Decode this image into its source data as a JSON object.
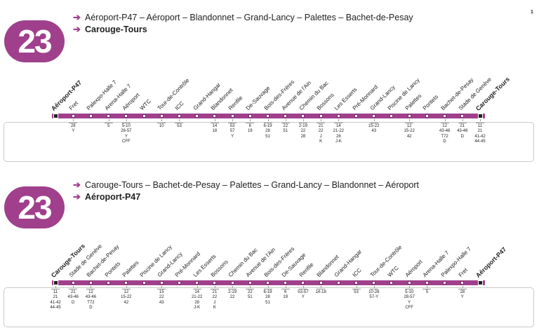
{
  "page_number": "1",
  "colors": {
    "line": "#a0408c"
  },
  "directions": [
    {
      "line_number": "23",
      "route": "Aéroport-P47 – Aéroport – Blandonnet – Grand-Lancy – Palettes – Bachet-de-Pesay",
      "destination": "Carouge-Tours",
      "stops": [
        {
          "name": "Aéroport-P47",
          "terminus": true,
          "corr": ""
        },
        {
          "name": "Fret",
          "corr": "28\nY"
        },
        {
          "name": "Palexpo-Halle 7",
          "corr": ""
        },
        {
          "name": "Arena-Halle 7",
          "corr": "5"
        },
        {
          "name": "Aéroport",
          "corr": "5-10\n28-57\nY\nCFF"
        },
        {
          "name": "WTC",
          "corr": ""
        },
        {
          "name": "Tour-de-Contrôle",
          "corr": "10"
        },
        {
          "name": "ICC",
          "corr": "53"
        },
        {
          "name": "Grand-Hangar",
          "corr": ""
        },
        {
          "name": "Blandonnet",
          "corr": "14\n18"
        },
        {
          "name": "Renfile",
          "corr": "53\n57\nY"
        },
        {
          "name": "De-Sauvage",
          "corr": "6\n19"
        },
        {
          "name": "Bois-des-Frères",
          "corr": "6-19\n28\n51"
        },
        {
          "name": "Avenue de l'Ain",
          "corr": "22\n51"
        },
        {
          "name": "Chemin du Bac",
          "corr": "2-19\n22\n28"
        },
        {
          "name": "Bossons",
          "corr": "21\n22\nJ\nK"
        },
        {
          "name": "Les Esserts",
          "corr": "14\n21-22\n28\nJ-K"
        },
        {
          "name": "Pré-Monnard",
          "corr": ""
        },
        {
          "name": "Grand-Lancy",
          "corr": "15-22\n43"
        },
        {
          "name": "Piscine de Lancy",
          "corr": ""
        },
        {
          "name": "Palettes",
          "corr": "12\n15-22\n42"
        },
        {
          "name": "Pontets",
          "corr": ""
        },
        {
          "name": "Bachet-de-Pesay",
          "corr": "12\n43-46\nT72\nD"
        },
        {
          "name": "Stade de Genève",
          "corr": "21\n43-46\nD"
        },
        {
          "name": "Carouge-Tours",
          "terminus": true,
          "corr": "11\n21\n41-42\n44-45"
        }
      ]
    },
    {
      "line_number": "23",
      "route": "Carouge-Tours – Bachet-de-Pesay – Palettes – Grand-Lancy – Blandonnet – Aéroport",
      "destination": "Aéroport-P47",
      "stops": [
        {
          "name": "Carouge-Tours",
          "terminus": true,
          "corr": "11\n21\n41-42\n44-45"
        },
        {
          "name": "Stade de Genève",
          "corr": "21\n43-46\nD"
        },
        {
          "name": "Bachet-de-Pesay",
          "corr": "12\n43-46\nT72\nD"
        },
        {
          "name": "Pontets",
          "corr": ""
        },
        {
          "name": "Palettes",
          "corr": "12\n15-22\n42"
        },
        {
          "name": "Piscine de Lancy",
          "corr": ""
        },
        {
          "name": "Grand-Lancy",
          "corr": "15\n22\n43"
        },
        {
          "name": "Pré-Monnard",
          "corr": ""
        },
        {
          "name": "Les Esserts",
          "corr": "14\n21-22\n28\nJ-K"
        },
        {
          "name": "Bossons",
          "corr": "21\n22\nJ\nK"
        },
        {
          "name": "Chemin du Bac",
          "corr": "2-19\n22"
        },
        {
          "name": "Avenue de l'Ain",
          "corr": "22\n51"
        },
        {
          "name": "Bois-des-Frères",
          "corr": "6-19\n28\n51"
        },
        {
          "name": "De-Sauvage",
          "corr": "6\n19"
        },
        {
          "name": "Renfile",
          "corr": "53-57\nY"
        },
        {
          "name": "Blandonnet",
          "corr": "14-18"
        },
        {
          "name": "Grand-Hangar",
          "corr": ""
        },
        {
          "name": "ICC",
          "corr": "53"
        },
        {
          "name": "Tour-de-Contrôle",
          "corr": "10-28\n57-Y"
        },
        {
          "name": "WTC",
          "corr": ""
        },
        {
          "name": "Aéroport",
          "corr": "5-10\n28-57\nY\nCFF"
        },
        {
          "name": "Arena-Halle 7",
          "corr": "5"
        },
        {
          "name": "Palexpo-Halle 7",
          "corr": ""
        },
        {
          "name": "Fret",
          "corr": "28\nY"
        },
        {
          "name": "Aéroport-P47",
          "terminus": true,
          "corr": ""
        }
      ]
    }
  ]
}
